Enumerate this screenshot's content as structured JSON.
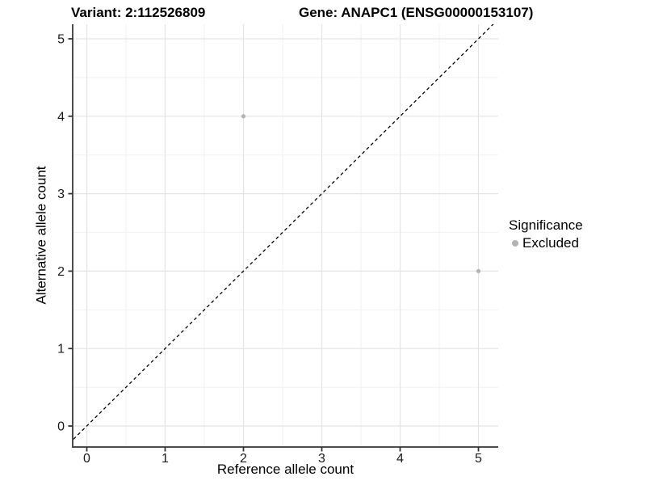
{
  "header": {
    "title_left": "Variant: 2:112526809",
    "title_right": "Gene: ANAPC1 (ENSG00000153107)"
  },
  "chart_data": {
    "type": "scatter",
    "title_left": "Variant: 2:112526809",
    "title_right": "Gene: ANAPC1 (ENSG00000153107)",
    "xlabel": "Reference allele count",
    "ylabel": "Alternative allele count",
    "xlim": [
      -0.25,
      5.25
    ],
    "ylim": [
      -0.25,
      5.25
    ],
    "x_ticks": [
      0,
      1,
      2,
      3,
      4,
      5
    ],
    "y_ticks": [
      0,
      1,
      2,
      3,
      4,
      5
    ],
    "minor_gridlines": [
      0.5,
      1.5,
      2.5,
      3.5,
      4.5
    ],
    "grid": "on",
    "identity_line": {
      "style": "dashed",
      "color": "#000000",
      "from": -0.5,
      "to": 5.6
    },
    "series": [
      {
        "name": "Excluded",
        "color": "#b3b3b3",
        "points": [
          [
            2,
            4
          ],
          [
            5,
            2
          ]
        ]
      }
    ],
    "legend": {
      "title": "Significance",
      "position": "right",
      "entries": [
        {
          "label": "Excluded",
          "color": "#b3b3b3"
        }
      ]
    }
  },
  "colors": {
    "axis_line": "#4d4d4d",
    "tick_mark": "#333333",
    "tick_label": "#1a1a1a",
    "grid_major": "#e4e4e4",
    "grid_minor": "#f1f1f1",
    "point": "#b3b3b3",
    "identity": "#000000"
  }
}
